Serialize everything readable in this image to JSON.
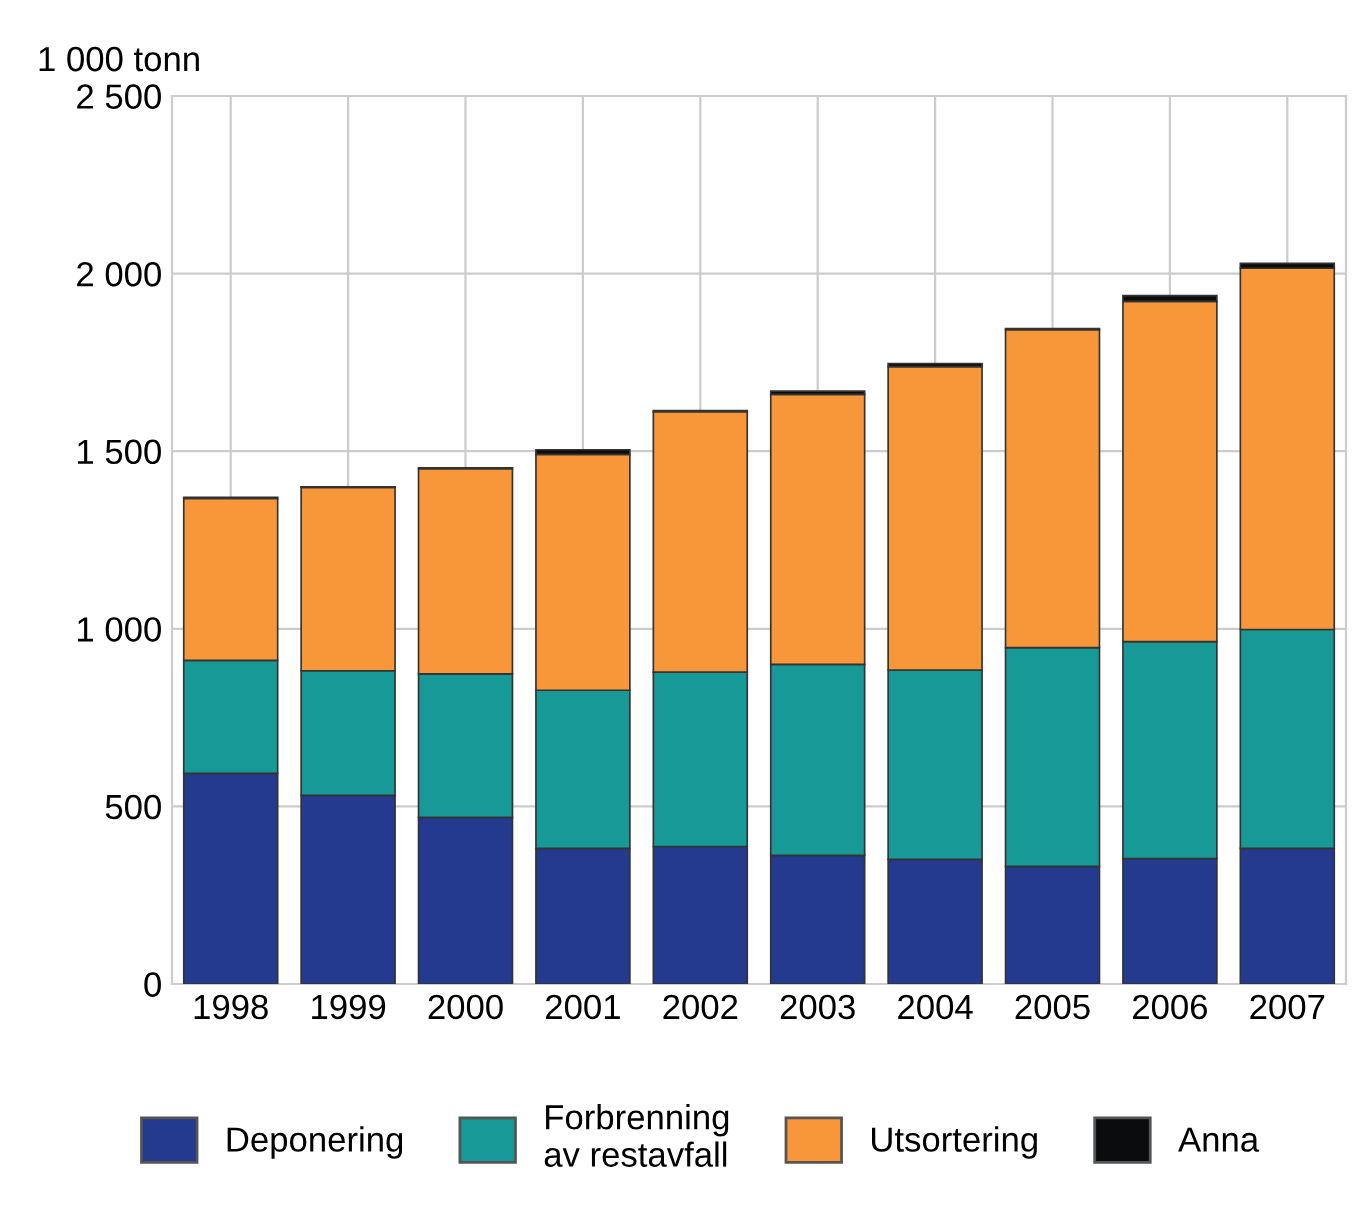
{
  "chart_data": {
    "type": "bar",
    "stacked": true,
    "ylabel": "1 000 tonn",
    "categories": [
      "1998",
      "1999",
      "2000",
      "2001",
      "2002",
      "2003",
      "2004",
      "2005",
      "2006",
      "2007"
    ],
    "series": [
      {
        "name": "Deponering",
        "color": "#233a8f",
        "values": [
          593,
          531,
          469,
          382,
          387,
          362,
          351,
          331,
          353,
          382
        ]
      },
      {
        "name": "Forbrenning\nav restavfall",
        "color": "#179a97",
        "values": [
          318,
          351,
          404,
          445,
          491,
          538,
          533,
          616,
          611,
          616
        ]
      },
      {
        "name": "Utsortering",
        "color": "#f7973a",
        "values": [
          456,
          516,
          578,
          664,
          733,
          760,
          854,
          895,
          958,
          1017
        ]
      },
      {
        "name": "Anna",
        "color": "#0a0c0d",
        "values": [
          3,
          2,
          2,
          13,
          3,
          9,
          9,
          3,
          16,
          14
        ]
      }
    ],
    "ylim": [
      0,
      2500
    ],
    "yticks": [
      0,
      500,
      {
        "value": 1000,
        "label": "1 000"
      },
      {
        "value": 1500,
        "label": "1 500"
      },
      {
        "value": 2000,
        "label": "2 000"
      },
      {
        "value": 2500,
        "label": "2 500"
      }
    ],
    "grid": true,
    "legend": "bottom"
  }
}
